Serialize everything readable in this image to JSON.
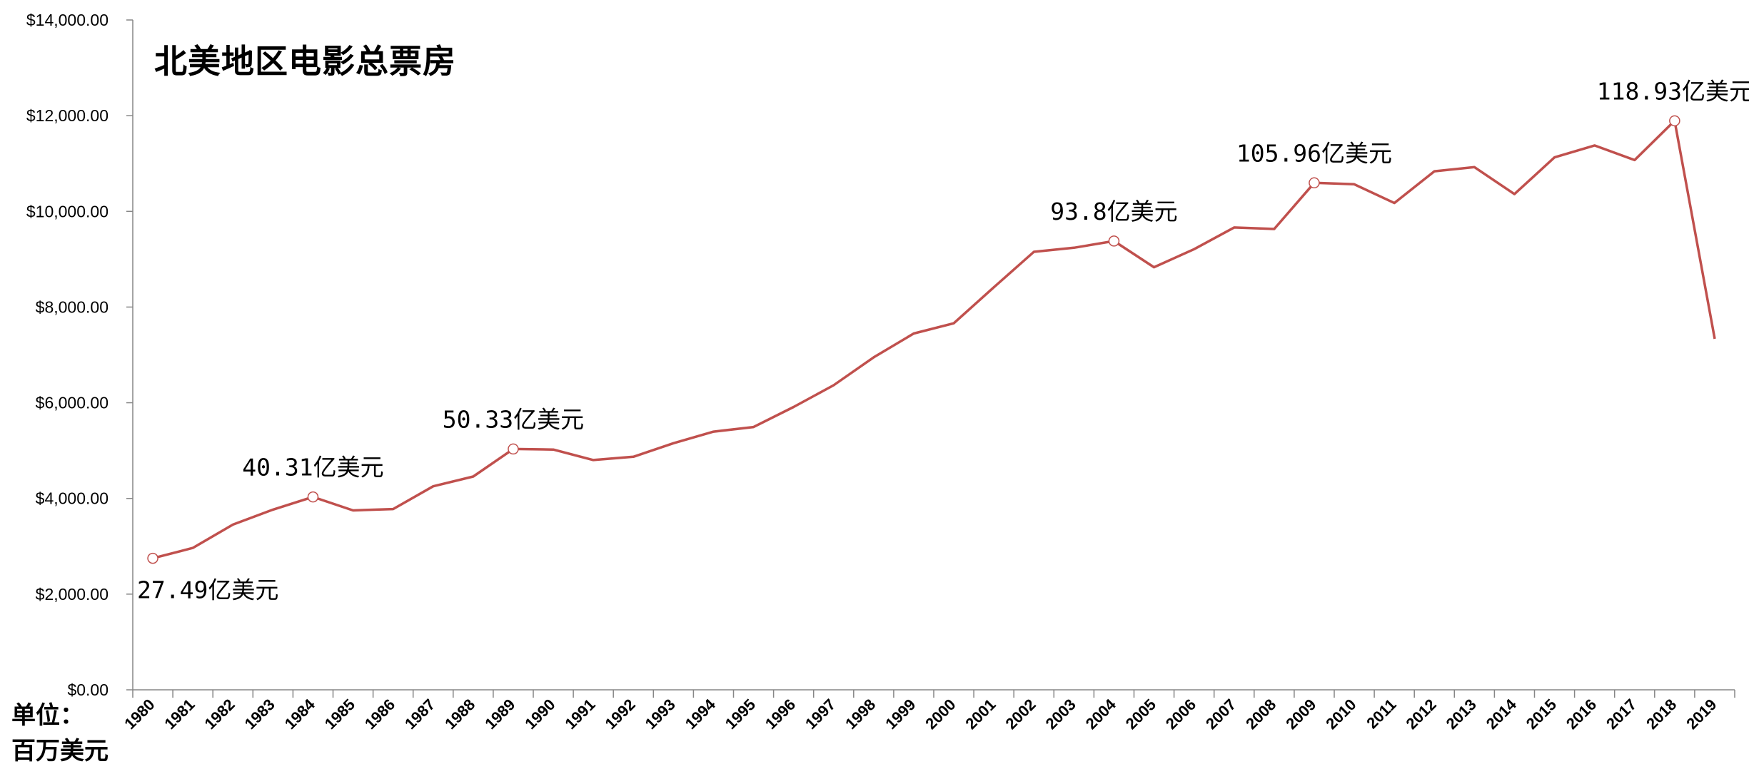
{
  "chart_data": {
    "type": "line",
    "title": "北美地区电影总票房",
    "xlabel": "",
    "ylabel": "单位：百万美元",
    "unit_label_line1": "单位：",
    "unit_label_line2": "百万美元",
    "ylim": [
      0,
      14000
    ],
    "yticks": [
      0,
      2000,
      4000,
      6000,
      8000,
      10000,
      12000,
      14000
    ],
    "ytick_labels": [
      "$0.00",
      "$2,000.00",
      "$4,000.00",
      "$6,000.00",
      "$8,000.00",
      "$10,000.00",
      "$12,000.00",
      "$14,000.00"
    ],
    "grid": false,
    "legend": null,
    "categories": [
      "1980",
      "1981",
      "1982",
      "1983",
      "1984",
      "1985",
      "1986",
      "1987",
      "1988",
      "1989",
      "1990",
      "1991",
      "1992",
      "1993",
      "1994",
      "1995",
      "1996",
      "1997",
      "1998",
      "1999",
      "2000",
      "2001",
      "2002",
      "2003",
      "2004",
      "2005",
      "2006",
      "2007",
      "2008",
      "2009",
      "2010",
      "2011",
      "2012",
      "2013",
      "2014",
      "2015",
      "2016",
      "2017",
      "2018",
      "2019"
    ],
    "series": [
      {
        "name": "北美地区电影总票房",
        "color": "#C0504D",
        "values": [
          2749,
          2966,
          3453,
          3766,
          4031,
          3749,
          3778,
          4253,
          4458,
          5033,
          5022,
          4803,
          4871,
          5154,
          5396,
          5493,
          5912,
          6366,
          6949,
          7448,
          7661,
          8413,
          9155,
          9240,
          9380,
          8832,
          9209,
          9663,
          9631,
          10596,
          10566,
          10174,
          10837,
          10924,
          10361,
          11129,
          11377,
          11072,
          11893,
          7335
        ]
      }
    ],
    "annotations": [
      {
        "index": 0,
        "text": "27.49亿美元",
        "position": "below"
      },
      {
        "index": 4,
        "text": "40.31亿美元",
        "position": "above"
      },
      {
        "index": 9,
        "text": "50.33亿美元",
        "position": "above"
      },
      {
        "index": 24,
        "text": "93.8亿美元",
        "position": "above"
      },
      {
        "index": 29,
        "text": "105.96亿美元",
        "position": "above"
      },
      {
        "index": 38,
        "text": "118.93亿美元",
        "position": "above"
      }
    ],
    "colors": {
      "line": "#C0504D",
      "marker_fill": "#FFFFFF",
      "axis": "#868686"
    }
  }
}
